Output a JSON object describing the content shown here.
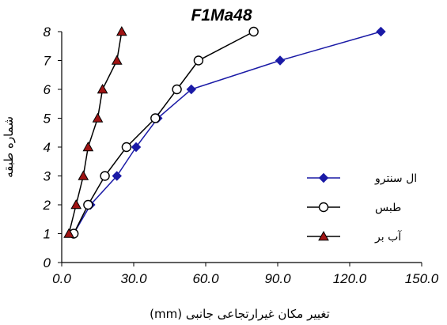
{
  "chart_data": {
    "type": "line",
    "title": "F1Ma48",
    "xlabel": "تغییر مکان غیرارتجاعی جانبی (mm)",
    "ylabel": "شماره طبقه",
    "xlim": [
      0,
      150
    ],
    "ylim": [
      0,
      8
    ],
    "x_ticks": [
      "0.0",
      "30.0",
      "60.0",
      "90.0",
      "120.0",
      "150.0"
    ],
    "y_ticks": [
      "0",
      "1",
      "2",
      "3",
      "4",
      "5",
      "6",
      "7",
      "8"
    ],
    "grid": false,
    "legend_position": "right",
    "series": [
      {
        "name": "ال سنترو",
        "color": "#1a1aa6",
        "marker": "diamond",
        "points": [
          [
            5,
            1
          ],
          [
            12,
            2
          ],
          [
            23,
            3
          ],
          [
            31,
            4
          ],
          [
            40,
            5
          ],
          [
            54,
            6
          ],
          [
            91,
            7
          ],
          [
            133,
            8
          ]
        ]
      },
      {
        "name": "طبس",
        "color": "#000000",
        "marker": "circle",
        "points": [
          [
            5,
            1
          ],
          [
            11,
            2
          ],
          [
            18,
            3
          ],
          [
            27,
            4
          ],
          [
            39,
            5
          ],
          [
            48,
            6
          ],
          [
            57,
            7
          ],
          [
            80,
            8
          ]
        ]
      },
      {
        "name": "آب بر",
        "color": "#000000",
        "marker_color": "#a01414",
        "marker": "triangle",
        "points": [
          [
            3,
            1
          ],
          [
            6,
            2
          ],
          [
            9,
            3
          ],
          [
            11,
            4
          ],
          [
            15,
            5
          ],
          [
            17,
            6
          ],
          [
            23,
            7
          ],
          [
            25,
            8
          ]
        ]
      }
    ]
  }
}
